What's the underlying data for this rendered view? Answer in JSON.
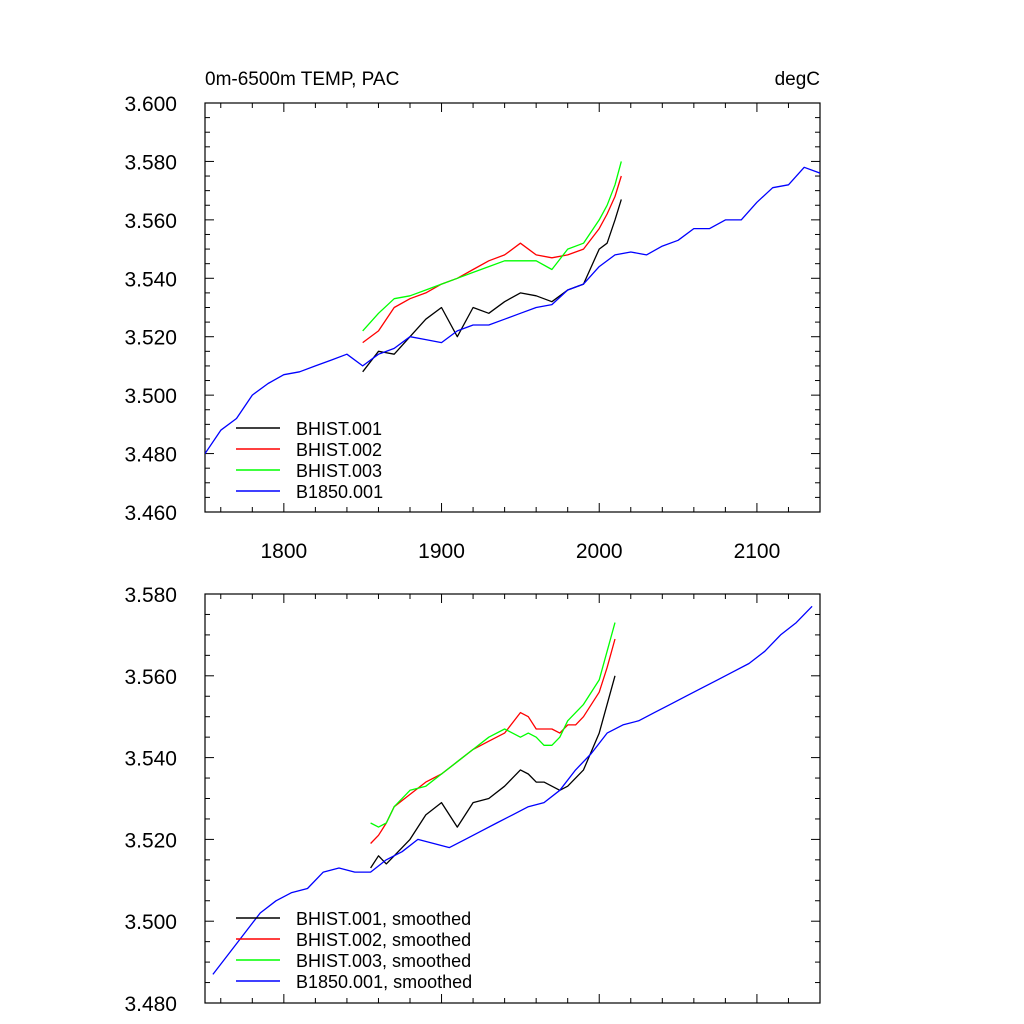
{
  "chart_data": [
    {
      "type": "line",
      "title": "0m-6500m TEMP, PAC",
      "units": "degC",
      "xlim": [
        1750,
        2140
      ],
      "ylim": [
        3.46,
        3.6
      ],
      "xticks": [
        1800,
        1900,
        2000,
        2100
      ],
      "xtick_labels": [
        "1800",
        "1900",
        "2000",
        "2100"
      ],
      "yticks": [
        3.46,
        3.48,
        3.5,
        3.52,
        3.54,
        3.56,
        3.58,
        3.6
      ],
      "ytick_labels": [
        "3.460",
        "3.480",
        "3.500",
        "3.520",
        "3.540",
        "3.560",
        "3.580",
        "3.600"
      ],
      "legend_position": "bottom-left",
      "series": [
        {
          "name": "BHIST.001",
          "color": "#000000",
          "x": [
            1850,
            1860,
            1870,
            1880,
            1890,
            1900,
            1910,
            1920,
            1930,
            1940,
            1950,
            1960,
            1970,
            1980,
            1990,
            2000,
            2005,
            2010,
            2014
          ],
          "y": [
            3.508,
            3.515,
            3.514,
            3.52,
            3.526,
            3.53,
            3.52,
            3.53,
            3.528,
            3.532,
            3.535,
            3.534,
            3.532,
            3.536,
            3.538,
            3.55,
            3.552,
            3.56,
            3.567
          ]
        },
        {
          "name": "BHIST.002",
          "color": "#ff0000",
          "x": [
            1850,
            1860,
            1870,
            1880,
            1890,
            1900,
            1910,
            1920,
            1930,
            1940,
            1950,
            1960,
            1970,
            1980,
            1990,
            2000,
            2005,
            2010,
            2014
          ],
          "y": [
            3.518,
            3.522,
            3.53,
            3.533,
            3.535,
            3.538,
            3.54,
            3.543,
            3.546,
            3.548,
            3.552,
            3.548,
            3.547,
            3.548,
            3.55,
            3.557,
            3.562,
            3.568,
            3.575
          ]
        },
        {
          "name": "BHIST.003",
          "color": "#00ff00",
          "x": [
            1850,
            1860,
            1870,
            1880,
            1890,
            1900,
            1910,
            1920,
            1930,
            1940,
            1950,
            1960,
            1970,
            1980,
            1990,
            2000,
            2005,
            2010,
            2014
          ],
          "y": [
            3.522,
            3.528,
            3.533,
            3.534,
            3.536,
            3.538,
            3.54,
            3.542,
            3.544,
            3.546,
            3.546,
            3.546,
            3.543,
            3.55,
            3.552,
            3.56,
            3.565,
            3.572,
            3.58
          ]
        },
        {
          "name": "B1850.001",
          "color": "#0000ff",
          "x": [
            1750,
            1760,
            1770,
            1780,
            1790,
            1800,
            1810,
            1820,
            1830,
            1840,
            1850,
            1860,
            1870,
            1880,
            1890,
            1900,
            1910,
            1920,
            1930,
            1940,
            1950,
            1960,
            1970,
            1980,
            1990,
            2000,
            2010,
            2020,
            2030,
            2040,
            2050,
            2060,
            2070,
            2080,
            2090,
            2100,
            2110,
            2120,
            2130,
            2140
          ],
          "y": [
            3.48,
            3.488,
            3.492,
            3.5,
            3.504,
            3.507,
            3.508,
            3.51,
            3.512,
            3.514,
            3.51,
            3.514,
            3.516,
            3.52,
            3.519,
            3.518,
            3.522,
            3.524,
            3.524,
            3.526,
            3.528,
            3.53,
            3.531,
            3.536,
            3.538,
            3.544,
            3.548,
            3.549,
            3.548,
            3.551,
            3.553,
            3.557,
            3.557,
            3.56,
            3.56,
            3.566,
            3.571,
            3.572,
            3.578,
            3.576
          ]
        }
      ]
    },
    {
      "type": "line",
      "xlim": [
        1750,
        2140
      ],
      "ylim": [
        3.48,
        3.58
      ],
      "xticks": [
        1800,
        1900,
        2000,
        2100
      ],
      "yticks": [
        3.48,
        3.5,
        3.52,
        3.54,
        3.56,
        3.58
      ],
      "ytick_labels": [
        "3.480",
        "3.500",
        "3.520",
        "3.540",
        "3.560",
        "3.580"
      ],
      "legend_position": "bottom-left",
      "series": [
        {
          "name": "BHIST.001, smoothed",
          "color": "#000000",
          "x": [
            1855,
            1860,
            1865,
            1870,
            1880,
            1890,
            1900,
            1905,
            1910,
            1920,
            1930,
            1940,
            1950,
            1955,
            1960,
            1965,
            1970,
            1975,
            1980,
            1990,
            2000,
            2005,
            2010
          ],
          "y": [
            3.513,
            3.516,
            3.514,
            3.516,
            3.52,
            3.526,
            3.529,
            3.526,
            3.523,
            3.529,
            3.53,
            3.533,
            3.537,
            3.536,
            3.534,
            3.534,
            3.533,
            3.532,
            3.533,
            3.537,
            3.546,
            3.553,
            3.56
          ]
        },
        {
          "name": "BHIST.002, smoothed",
          "color": "#ff0000",
          "x": [
            1855,
            1860,
            1865,
            1870,
            1880,
            1890,
            1900,
            1910,
            1920,
            1930,
            1940,
            1950,
            1955,
            1960,
            1965,
            1970,
            1975,
            1980,
            1985,
            1990,
            2000,
            2005,
            2010
          ],
          "y": [
            3.519,
            3.521,
            3.524,
            3.528,
            3.531,
            3.534,
            3.536,
            3.539,
            3.542,
            3.544,
            3.546,
            3.551,
            3.55,
            3.547,
            3.547,
            3.547,
            3.546,
            3.548,
            3.548,
            3.55,
            3.556,
            3.562,
            3.569
          ]
        },
        {
          "name": "BHIST.003, smoothed",
          "color": "#00ff00",
          "x": [
            1855,
            1860,
            1865,
            1870,
            1880,
            1890,
            1900,
            1910,
            1920,
            1930,
            1940,
            1945,
            1950,
            1955,
            1960,
            1965,
            1970,
            1975,
            1980,
            1990,
            2000,
            2005,
            2010
          ],
          "y": [
            3.524,
            3.523,
            3.524,
            3.528,
            3.532,
            3.533,
            3.536,
            3.539,
            3.542,
            3.545,
            3.547,
            3.546,
            3.545,
            3.546,
            3.545,
            3.543,
            3.543,
            3.545,
            3.549,
            3.553,
            3.559,
            3.566,
            3.573
          ]
        },
        {
          "name": "B1850.001, smoothed",
          "color": "#0000ff",
          "x": [
            1755,
            1765,
            1775,
            1785,
            1795,
            1805,
            1815,
            1825,
            1835,
            1845,
            1855,
            1865,
            1875,
            1885,
            1895,
            1905,
            1915,
            1925,
            1935,
            1945,
            1955,
            1965,
            1975,
            1985,
            1995,
            2005,
            2015,
            2025,
            2035,
            2045,
            2055,
            2065,
            2075,
            2085,
            2095,
            2105,
            2115,
            2125,
            2135
          ],
          "y": [
            3.487,
            3.492,
            3.497,
            3.502,
            3.505,
            3.507,
            3.508,
            3.512,
            3.513,
            3.512,
            3.512,
            3.515,
            3.517,
            3.52,
            3.519,
            3.518,
            3.52,
            3.522,
            3.524,
            3.526,
            3.528,
            3.529,
            3.532,
            3.537,
            3.541,
            3.546,
            3.548,
            3.549,
            3.551,
            3.553,
            3.555,
            3.557,
            3.559,
            3.561,
            3.563,
            3.566,
            3.57,
            3.573,
            3.577
          ]
        }
      ]
    }
  ]
}
